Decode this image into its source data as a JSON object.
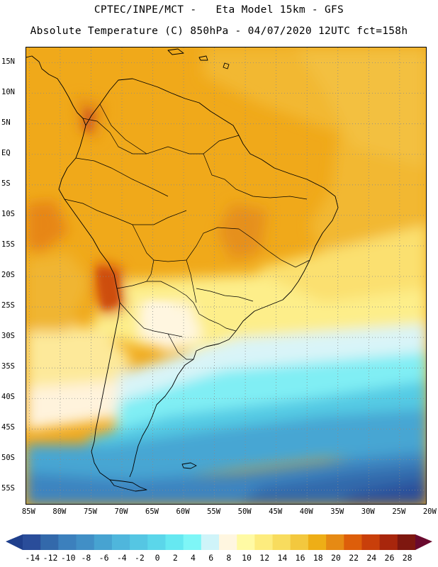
{
  "header": {
    "line1": "CPTEC/INPE/MCT -   Eta Model 15km - GFS",
    "line2": "Absolute Temperature (C) 850hPa - 04/07/2020 12UTC fct=158h"
  },
  "map": {
    "lat_labels": [
      "15N",
      "10N",
      "5N",
      "EQ",
      "5S",
      "10S",
      "15S",
      "20S",
      "25S",
      "30S",
      "35S",
      "40S",
      "45S",
      "50S",
      "55S"
    ],
    "lon_labels": [
      "85W",
      "80W",
      "75W",
      "70W",
      "65W",
      "60W",
      "55W",
      "50W",
      "45W",
      "40W",
      "35W",
      "30W",
      "25W",
      "20W"
    ],
    "lat_values": [
      15,
      10,
      5,
      0,
      -5,
      -10,
      -15,
      -20,
      -25,
      -30,
      -35,
      -40,
      -45,
      -50,
      -55
    ],
    "lon_values": [
      -85,
      -80,
      -75,
      -70,
      -65,
      -60,
      -55,
      -50,
      -45,
      -40,
      -35,
      -30,
      -25,
      -20
    ],
    "lat_range": [
      -57.5,
      17.5
    ],
    "lon_range": [
      -85.5,
      -20.5
    ],
    "background_color": "#f2b233",
    "gridline_color": "#8a8a8a",
    "coast_color": "#000000"
  },
  "colorbar": {
    "labels": [
      "-14",
      "-12",
      "-10",
      "-8",
      "-6",
      "-4",
      "-2",
      "0",
      "2",
      "4",
      "6",
      "8",
      "10",
      "12",
      "14",
      "16",
      "18",
      "20",
      "22",
      "24",
      "26",
      "28"
    ],
    "colors": [
      "#2a4d9a",
      "#3369ab",
      "#3c80bd",
      "#418fc6",
      "#47a3d1",
      "#4fb6dc",
      "#55c6e3",
      "#5bd6ea",
      "#66e8f1",
      "#7ef6f7",
      "#cff4f9",
      "#fff6e0",
      "#fffaa4",
      "#fdec7e",
      "#f8dc5e",
      "#f3c83e",
      "#eeae16",
      "#e68a14",
      "#dd5e0a",
      "#c93f0a",
      "#a8260c",
      "#7e170f"
    ],
    "left_arrow_color": "#1f3f8c",
    "right_arrow_color": "#6a0a2e"
  }
}
